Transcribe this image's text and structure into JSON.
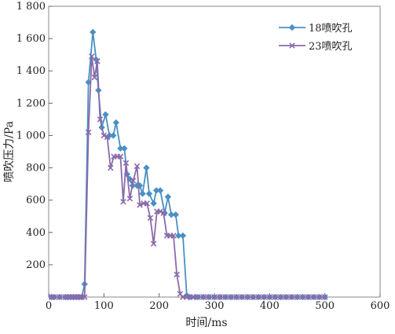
{
  "chart_data": {
    "type": "line",
    "title": "",
    "xlabel": "时间/ms",
    "ylabel": "喷吹压力/Pa",
    "xlim": [
      0,
      600
    ],
    "ylim": [
      0,
      1800
    ],
    "xticks": [
      0,
      100,
      200,
      300,
      400,
      500,
      600
    ],
    "yticks": [
      0,
      200,
      400,
      600,
      800,
      1000,
      1200,
      1400,
      1600,
      1800
    ],
    "xtick_labels": [
      "0",
      "100",
      "200",
      "300",
      "400",
      "500",
      "600"
    ],
    "ytick_labels": [
      "",
      "200",
      "400",
      "600",
      "800",
      "1 000",
      "1 200",
      "1 400",
      "1 600",
      "1 800"
    ],
    "grid": false,
    "legend": "top-right",
    "series": [
      {
        "name": "18喷吹孔",
        "color": "#4a90c4",
        "marker": "diamond",
        "points": [
          [
            5,
            0
          ],
          [
            10,
            0
          ],
          [
            20,
            0
          ],
          [
            30,
            0
          ],
          [
            35,
            0
          ],
          [
            40,
            0
          ],
          [
            45,
            0
          ],
          [
            50,
            0
          ],
          [
            55,
            0
          ],
          [
            60,
            0
          ],
          [
            65,
            80
          ],
          [
            72,
            1330
          ],
          [
            80,
            1640
          ],
          [
            86,
            1470
          ],
          [
            90,
            1280
          ],
          [
            96,
            1050
          ],
          [
            103,
            1130
          ],
          [
            110,
            1000
          ],
          [
            117,
            1000
          ],
          [
            122,
            1080
          ],
          [
            130,
            920
          ],
          [
            137,
            920
          ],
          [
            142,
            760
          ],
          [
            147,
            730
          ],
          [
            152,
            690
          ],
          [
            160,
            690
          ],
          [
            165,
            690
          ],
          [
            170,
            640
          ],
          [
            177,
            800
          ],
          [
            182,
            640
          ],
          [
            190,
            580
          ],
          [
            195,
            660
          ],
          [
            202,
            660
          ],
          [
            210,
            520
          ],
          [
            216,
            620
          ],
          [
            222,
            510
          ],
          [
            230,
            510
          ],
          [
            235,
            380
          ],
          [
            243,
            380
          ],
          [
            250,
            10
          ],
          [
            255,
            0
          ],
          [
            265,
            0
          ],
          [
            270,
            0
          ],
          [
            280,
            0
          ],
          [
            290,
            0
          ],
          [
            300,
            0
          ],
          [
            310,
            0
          ],
          [
            320,
            0
          ],
          [
            330,
            0
          ],
          [
            340,
            0
          ],
          [
            350,
            0
          ],
          [
            360,
            0
          ],
          [
            370,
            0
          ],
          [
            380,
            0
          ],
          [
            390,
            0
          ],
          [
            400,
            0
          ],
          [
            410,
            0
          ],
          [
            420,
            0
          ],
          [
            430,
            0
          ],
          [
            440,
            0
          ],
          [
            450,
            0
          ],
          [
            460,
            0
          ],
          [
            470,
            0
          ],
          [
            480,
            0
          ],
          [
            490,
            0
          ],
          [
            500,
            0
          ]
        ]
      },
      {
        "name": "23喷吹孔",
        "color": "#8a6aab",
        "marker": "x",
        "points": [
          [
            5,
            0
          ],
          [
            10,
            0
          ],
          [
            20,
            0
          ],
          [
            30,
            0
          ],
          [
            35,
            0
          ],
          [
            40,
            0
          ],
          [
            45,
            0
          ],
          [
            50,
            0
          ],
          [
            55,
            0
          ],
          [
            60,
            0
          ],
          [
            65,
            0
          ],
          [
            72,
            1020
          ],
          [
            78,
            1490
          ],
          [
            83,
            1360
          ],
          [
            88,
            1460
          ],
          [
            93,
            1100
          ],
          [
            100,
            1000
          ],
          [
            106,
            990
          ],
          [
            112,
            800
          ],
          [
            118,
            870
          ],
          [
            124,
            870
          ],
          [
            130,
            870
          ],
          [
            135,
            590
          ],
          [
            140,
            830
          ],
          [
            147,
            610
          ],
          [
            153,
            720
          ],
          [
            160,
            810
          ],
          [
            165,
            570
          ],
          [
            172,
            580
          ],
          [
            178,
            580
          ],
          [
            184,
            490
          ],
          [
            190,
            330
          ],
          [
            196,
            530
          ],
          [
            202,
            530
          ],
          [
            208,
            520
          ],
          [
            214,
            380
          ],
          [
            220,
            380
          ],
          [
            226,
            380
          ],
          [
            232,
            140
          ],
          [
            238,
            20
          ],
          [
            243,
            0
          ],
          [
            250,
            0
          ],
          [
            256,
            0
          ],
          [
            262,
            0
          ],
          [
            270,
            0
          ],
          [
            280,
            0
          ],
          [
            290,
            0
          ],
          [
            300,
            0
          ],
          [
            310,
            0
          ],
          [
            320,
            0
          ],
          [
            330,
            0
          ],
          [
            340,
            0
          ],
          [
            350,
            0
          ],
          [
            360,
            0
          ],
          [
            370,
            0
          ],
          [
            380,
            0
          ],
          [
            390,
            0
          ],
          [
            400,
            0
          ],
          [
            410,
            0
          ],
          [
            420,
            0
          ],
          [
            430,
            0
          ],
          [
            440,
            0
          ],
          [
            450,
            0
          ],
          [
            460,
            0
          ],
          [
            470,
            0
          ],
          [
            480,
            0
          ],
          [
            490,
            0
          ],
          [
            500,
            0
          ]
        ]
      }
    ]
  }
}
